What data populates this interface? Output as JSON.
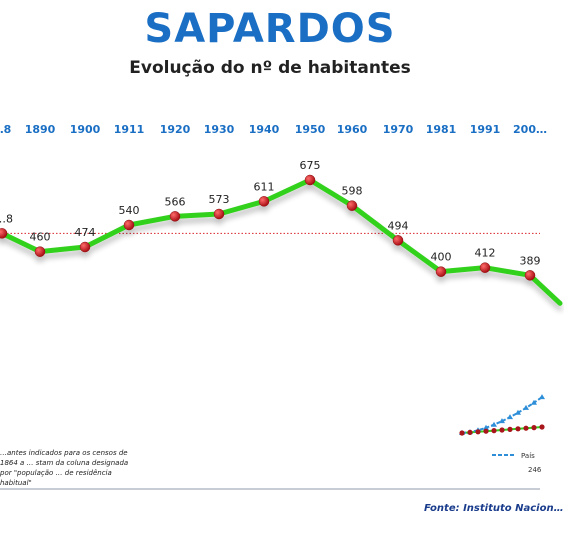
{
  "header": {
    "title": "SAPARDOS",
    "subtitle": "Evolução do nº de habitantes"
  },
  "notes": {
    "census": "…antes indicados para os censos de 1864 a … stam da coluna designada por \"população … de residência habitual\"",
    "source": "Fonte: Instituto Nacion…"
  },
  "colors": {
    "title": "#1a6fc4",
    "years": "#1a6fc4",
    "line": "#33d11f",
    "points": "#c0141a",
    "average_line": "#d9252b",
    "inset_blue": "#2e8fd8"
  },
  "chart_data": {
    "type": "line",
    "x": [
      "…8",
      "1890",
      "1900",
      "1911",
      "1920",
      "1930",
      "1940",
      "1950",
      "1960",
      "1970",
      "1981",
      "1991",
      "200…"
    ],
    "series": [
      {
        "values": [
          null,
          460,
          474,
          540,
          566,
          573,
          611,
          675,
          598,
          494,
          400,
          412,
          389
        ]
      }
    ],
    "point_labels": [
      "…8",
      "460",
      "474",
      "540",
      "566",
      "573",
      "611",
      "675",
      "598",
      "494",
      "400",
      "412",
      "389"
    ],
    "reference_line": {
      "style": "dotted",
      "color": "#d9252b",
      "value": 515
    },
    "ylim": [
      300,
      720
    ],
    "grid": false,
    "inset": {
      "type": "line",
      "legend_label": "País",
      "value_label": "246"
    }
  }
}
